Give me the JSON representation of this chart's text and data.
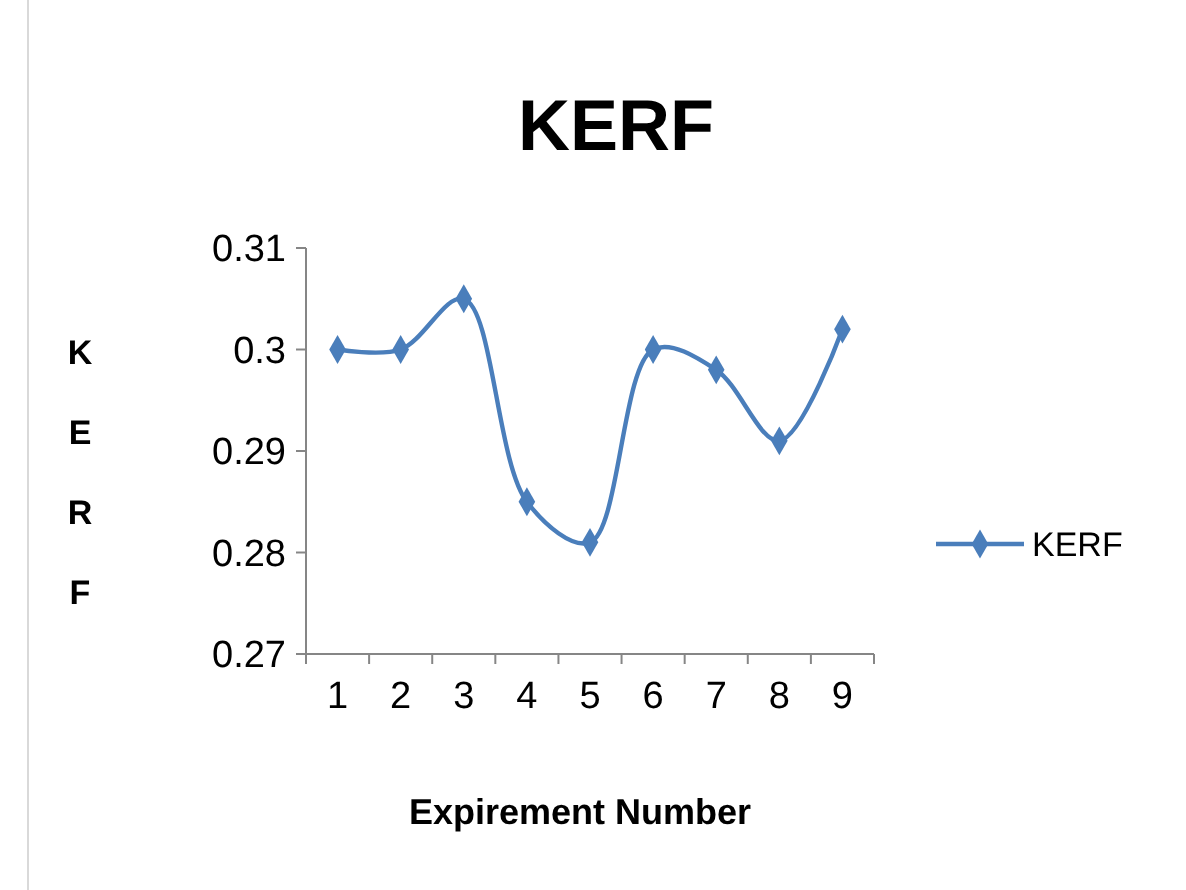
{
  "chart_data": {
    "type": "line",
    "title": "KERF",
    "xlabel": "Expirement Number",
    "ylabel": "KERF",
    "categories": [
      "1",
      "2",
      "3",
      "4",
      "5",
      "6",
      "7",
      "8",
      "9"
    ],
    "series": [
      {
        "name": "KERF",
        "color": "#4a7ebb",
        "values": [
          0.3,
          0.3,
          0.305,
          0.285,
          0.281,
          0.3,
          0.298,
          0.291,
          0.302
        ]
      }
    ],
    "ylim": [
      0.27,
      0.31
    ],
    "yticks": [
      0.27,
      0.28,
      0.29,
      0.3,
      0.31
    ],
    "marker": "diamond",
    "legend": "right",
    "grid": false
  }
}
